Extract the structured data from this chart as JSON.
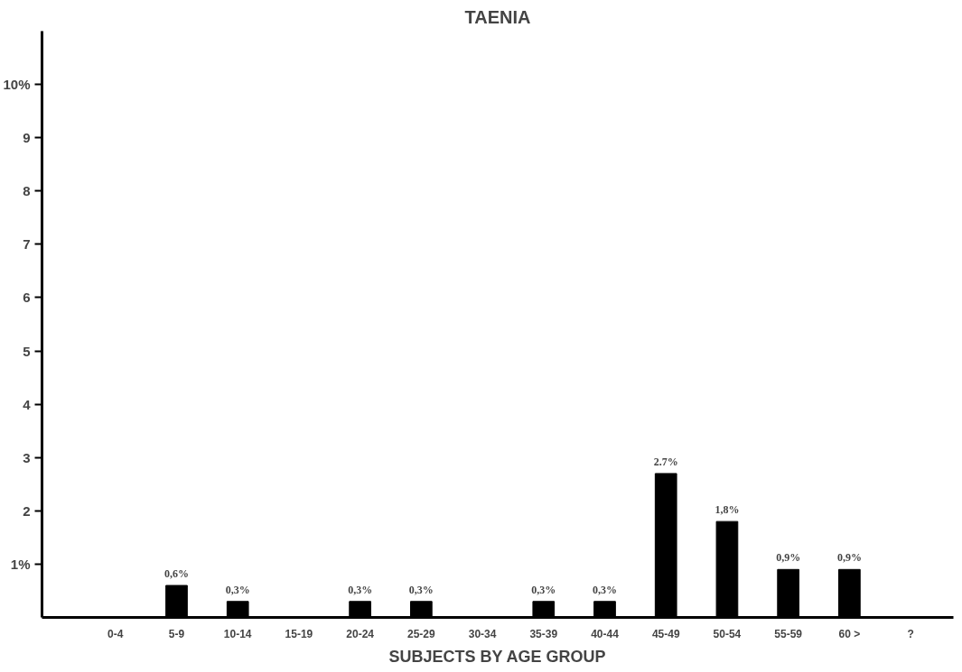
{
  "chart_data": {
    "type": "bar",
    "title": "TAENIA",
    "xlabel": "SUBJECTS BY AGE GROUP",
    "categories": [
      "0-4",
      "5-9",
      "10-14",
      "15-19",
      "20-24",
      "25-29",
      "30-34",
      "35-39",
      "40-44",
      "45-49",
      "50-54",
      "55-59",
      "60 >",
      "?"
    ],
    "values": [
      null,
      0.6,
      0.3,
      null,
      0.3,
      0.3,
      null,
      0.3,
      0.3,
      2.7,
      1.8,
      0.9,
      0.9,
      null
    ],
    "value_labels": [
      null,
      "0,6%",
      "0,3%",
      null,
      "0,3%",
      "0,3%",
      null,
      "0,3%",
      "0,3%",
      "2.7%",
      "1,8%",
      "0,9%",
      "0,9%",
      null
    ],
    "color": "#000000",
    "ylim": [
      0,
      11
    ],
    "yticks": [
      {
        "value": 1,
        "label": "1%"
      },
      2,
      3,
      4,
      5,
      6,
      7,
      8,
      9,
      {
        "value": 10,
        "label": "10%"
      }
    ],
    "grid": false
  }
}
